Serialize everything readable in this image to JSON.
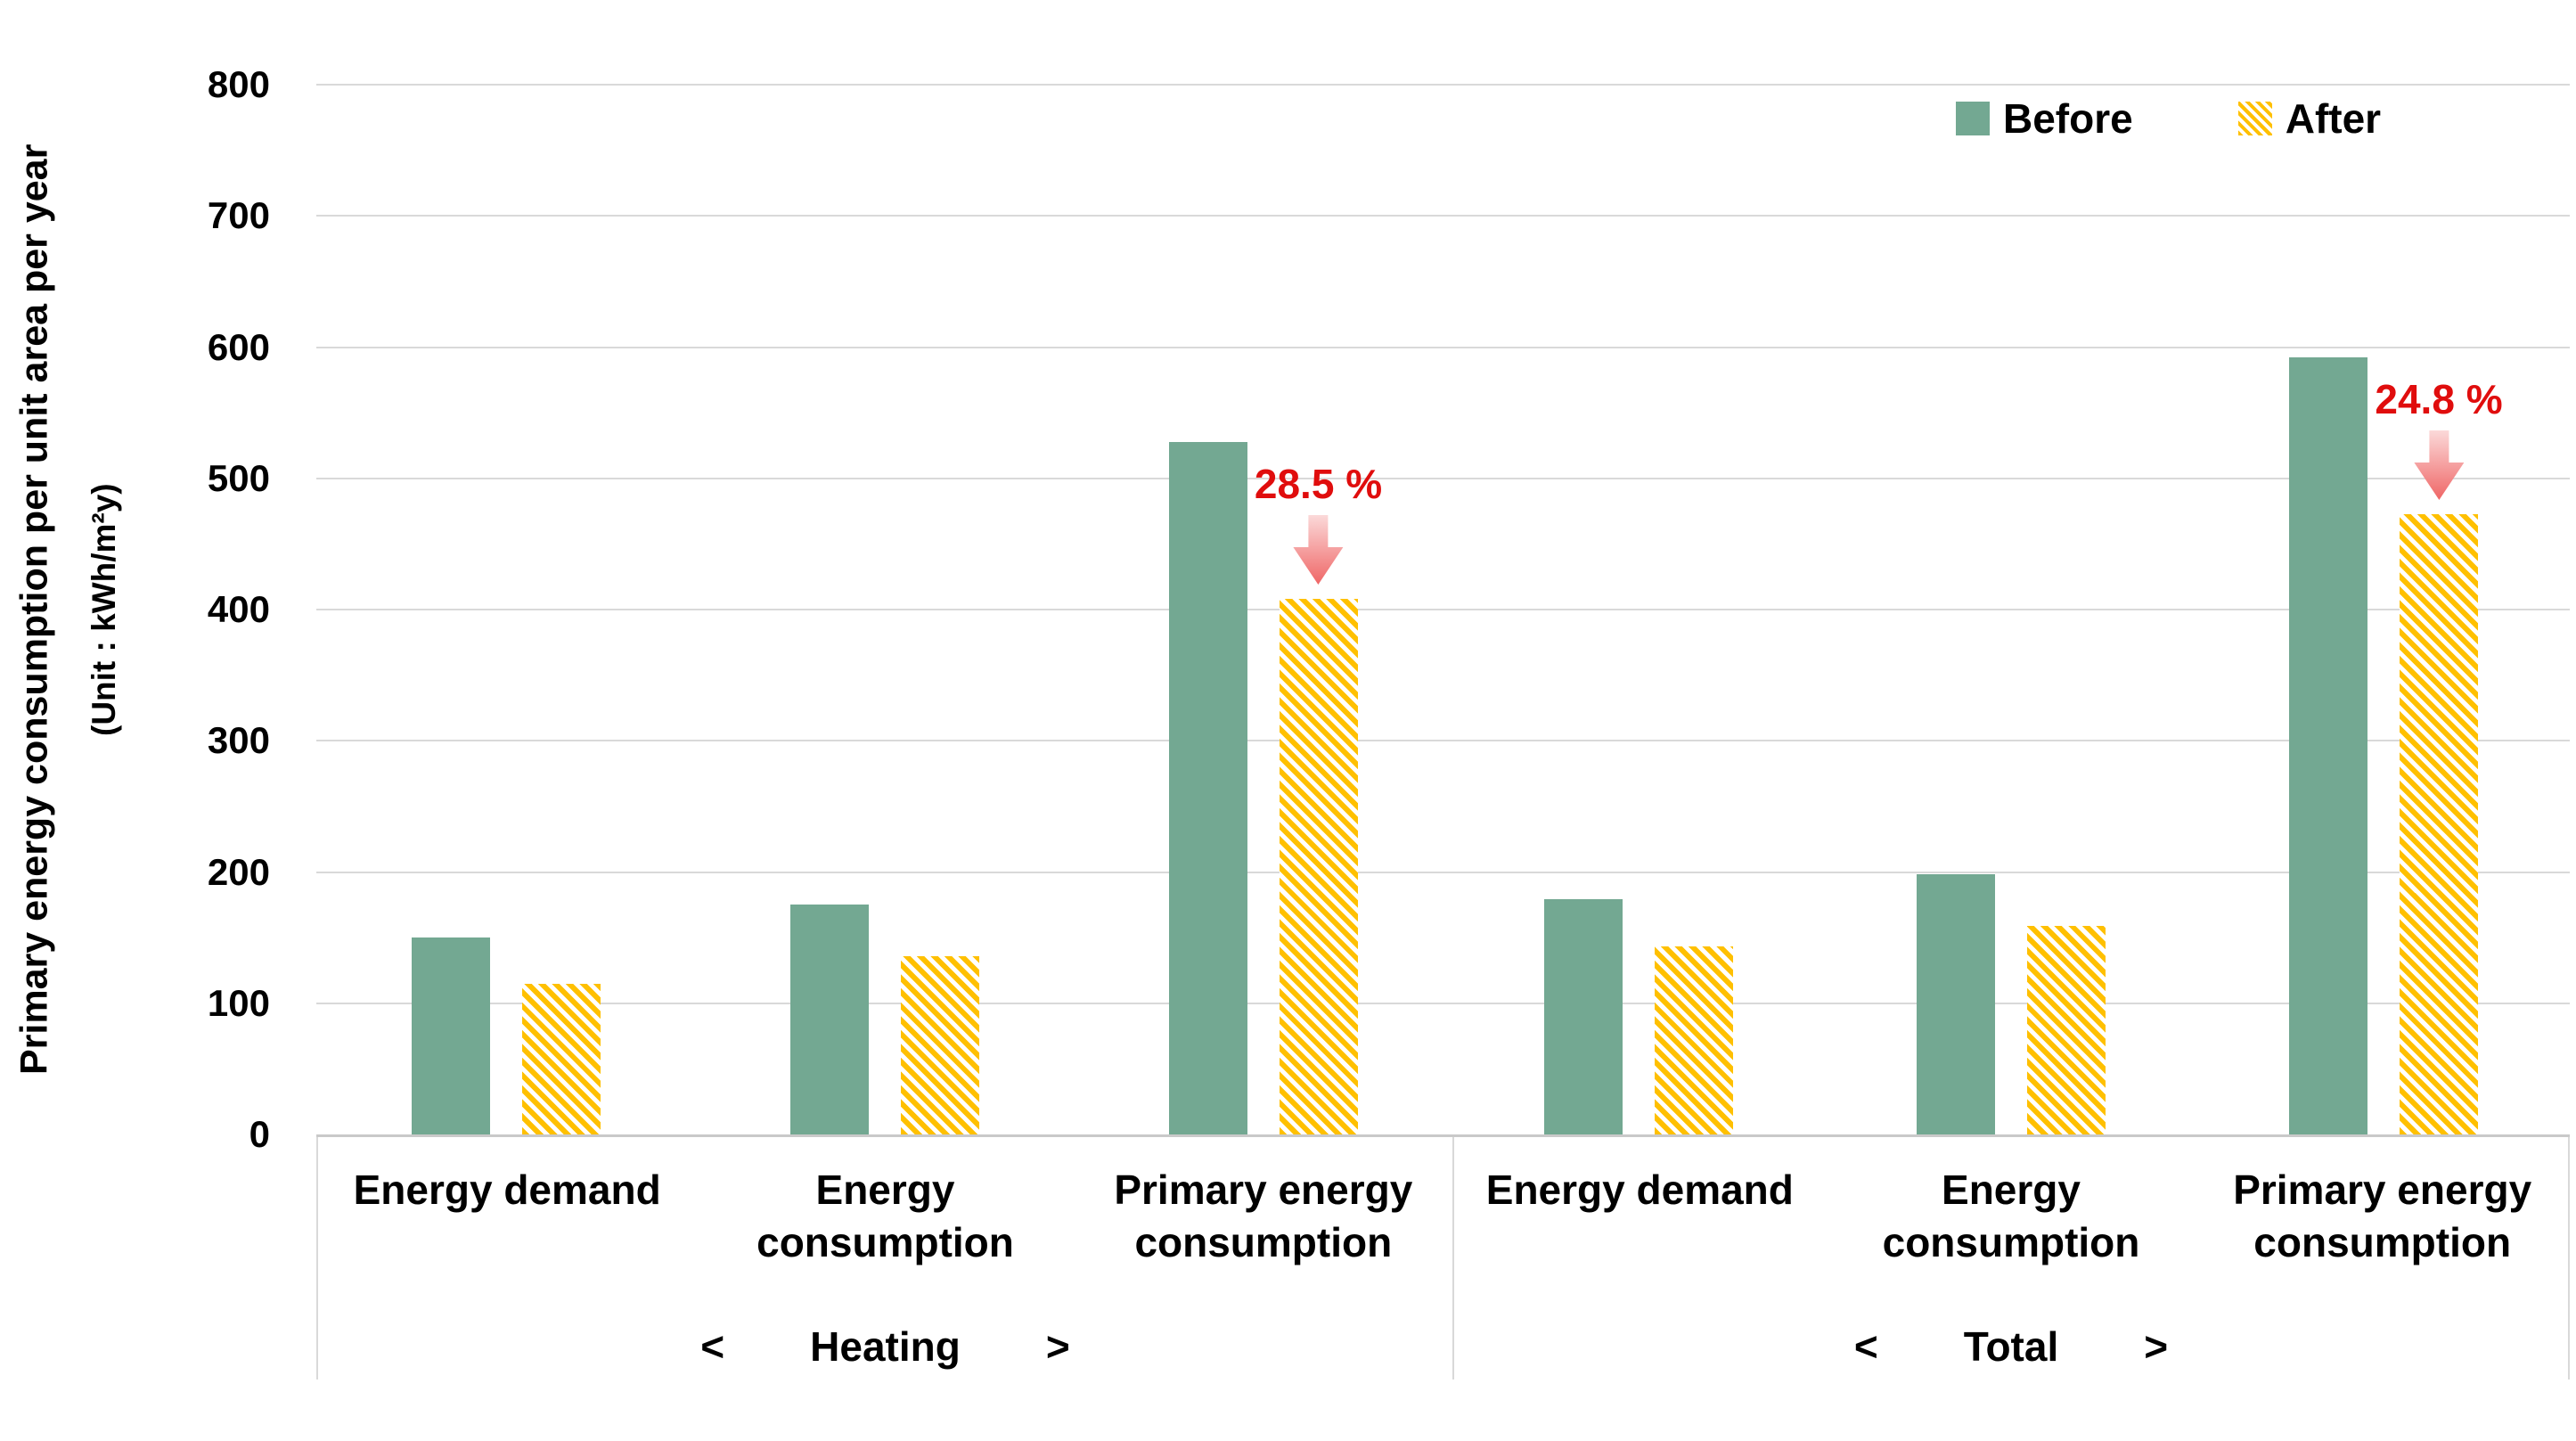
{
  "y_axis": {
    "title": "Primary energy consumption per unit area per year",
    "unit": "(Unit : kWh/m²y)",
    "ticks": [
      800,
      700,
      600,
      500,
      400,
      300,
      200,
      100,
      0
    ]
  },
  "legend": {
    "position": "top-right",
    "items": [
      {
        "label": "Before",
        "swatch": "solid-green-square",
        "color": "#73A892"
      },
      {
        "label": "After",
        "swatch": "yellow-diagonal-hatch-square",
        "color": "#FFC000"
      }
    ]
  },
  "colors": {
    "before_bar": "#73A892",
    "after_bar_hatch": "#FFC000",
    "annotation_red": "#E00D0D",
    "gridline": "#D9D9D9",
    "arrow_gradient_top": "#FBD9D9",
    "arrow_gradient_bottom": "#EF6666"
  },
  "chart_data": {
    "type": "bar",
    "ylabel": "Primary energy consumption per unit area per year (Unit : kWh/m²y)",
    "ylim": [
      0,
      800
    ],
    "ytick_step": 100,
    "grid": "horizontal",
    "legend_position": "top-right",
    "series_names": [
      "Before",
      "After"
    ],
    "group_bracket_open": "<",
    "group_bracket_close": ">",
    "groups": [
      {
        "group_label": "Heating",
        "categories": [
          {
            "label_lines": [
              "Energy demand"
            ]
          },
          {
            "label_lines": [
              "Energy",
              "consumption"
            ]
          },
          {
            "label_lines": [
              "Primary energy",
              "consumption"
            ]
          }
        ],
        "series": [
          {
            "name": "Before",
            "values": [
              150,
              175,
              528
            ]
          },
          {
            "name": "After",
            "values": [
              115,
              136,
              408
            ]
          }
        ],
        "annotation": {
          "text": "28.5 %",
          "category_index": 2,
          "series": "After"
        }
      },
      {
        "group_label": "Total",
        "categories": [
          {
            "label_lines": [
              "Energy demand"
            ]
          },
          {
            "label_lines": [
              "Energy",
              "consumption"
            ]
          },
          {
            "label_lines": [
              "Primary energy",
              "consumption"
            ]
          }
        ],
        "series": [
          {
            "name": "Before",
            "values": [
              179,
              198,
              592
            ]
          },
          {
            "name": "After",
            "values": [
              143,
              159,
              473
            ]
          }
        ],
        "annotation": {
          "text": "24.8 %",
          "category_index": 2,
          "series": "After"
        }
      }
    ]
  }
}
